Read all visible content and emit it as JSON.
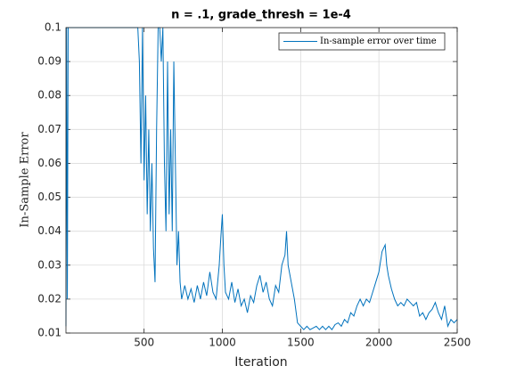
{
  "chart_data": {
    "type": "line",
    "title": "n = .1, grade_thresh = 1e-4",
    "xlabel": "Iteration",
    "ylabel": "In-Sample Error",
    "x": [
      1,
      5,
      10,
      15,
      20,
      100,
      200,
      300,
      400,
      460,
      470,
      480,
      490,
      500,
      510,
      520,
      530,
      540,
      550,
      560,
      570,
      580,
      590,
      600,
      610,
      620,
      630,
      640,
      650,
      660,
      670,
      680,
      690,
      700,
      710,
      720,
      730,
      740,
      760,
      780,
      800,
      820,
      840,
      860,
      880,
      900,
      920,
      940,
      960,
      980,
      990,
      1000,
      1010,
      1020,
      1040,
      1060,
      1080,
      1100,
      1120,
      1140,
      1160,
      1180,
      1200,
      1220,
      1240,
      1260,
      1280,
      1300,
      1320,
      1340,
      1360,
      1380,
      1400,
      1410,
      1420,
      1440,
      1460,
      1480,
      1500,
      1520,
      1540,
      1560,
      1580,
      1600,
      1620,
      1640,
      1660,
      1680,
      1700,
      1720,
      1740,
      1760,
      1780,
      1800,
      1820,
      1840,
      1860,
      1880,
      1900,
      1920,
      1940,
      1960,
      1980,
      2000,
      2020,
      2040,
      2050,
      2060,
      2080,
      2100,
      2120,
      2140,
      2160,
      2180,
      2200,
      2220,
      2240,
      2260,
      2280,
      2300,
      2320,
      2340,
      2360,
      2380,
      2400,
      2420,
      2440,
      2460,
      2480,
      2500
    ],
    "series": [
      {
        "name": "In-sample error over time",
        "color": "#0072bd",
        "values": [
          0.012,
          0.1,
          0.02,
          0.1,
          0.1,
          0.1,
          0.1,
          0.1,
          0.1,
          0.1,
          0.09,
          0.06,
          0.1,
          0.055,
          0.08,
          0.045,
          0.07,
          0.04,
          0.06,
          0.035,
          0.025,
          0.07,
          0.1,
          0.1,
          0.09,
          0.1,
          0.06,
          0.04,
          0.09,
          0.045,
          0.07,
          0.04,
          0.09,
          0.06,
          0.03,
          0.04,
          0.025,
          0.02,
          0.024,
          0.02,
          0.023,
          0.019,
          0.024,
          0.02,
          0.025,
          0.021,
          0.028,
          0.022,
          0.02,
          0.03,
          0.038,
          0.045,
          0.03,
          0.022,
          0.02,
          0.025,
          0.019,
          0.023,
          0.018,
          0.02,
          0.016,
          0.021,
          0.019,
          0.024,
          0.027,
          0.022,
          0.025,
          0.02,
          0.018,
          0.024,
          0.022,
          0.03,
          0.033,
          0.04,
          0.03,
          0.025,
          0.02,
          0.013,
          0.012,
          0.011,
          0.012,
          0.011,
          0.0115,
          0.012,
          0.011,
          0.012,
          0.011,
          0.012,
          0.011,
          0.0125,
          0.013,
          0.012,
          0.014,
          0.013,
          0.016,
          0.015,
          0.018,
          0.02,
          0.018,
          0.02,
          0.019,
          0.022,
          0.025,
          0.028,
          0.034,
          0.036,
          0.03,
          0.027,
          0.023,
          0.02,
          0.018,
          0.019,
          0.018,
          0.02,
          0.019,
          0.018,
          0.019,
          0.015,
          0.016,
          0.014,
          0.016,
          0.017,
          0.019,
          0.016,
          0.014,
          0.018,
          0.012,
          0.014,
          0.013,
          0.014
        ]
      }
    ],
    "xlim": [
      1,
      2500
    ],
    "xticks": [
      500,
      1000,
      1500,
      2000,
      2500
    ],
    "ylim": [
      0.01,
      0.1
    ],
    "yticks": [
      0.01,
      0.02,
      0.03,
      0.04,
      0.05,
      0.06,
      0.07,
      0.08,
      0.09,
      0.1
    ],
    "grid": true,
    "legend": "northeast"
  }
}
